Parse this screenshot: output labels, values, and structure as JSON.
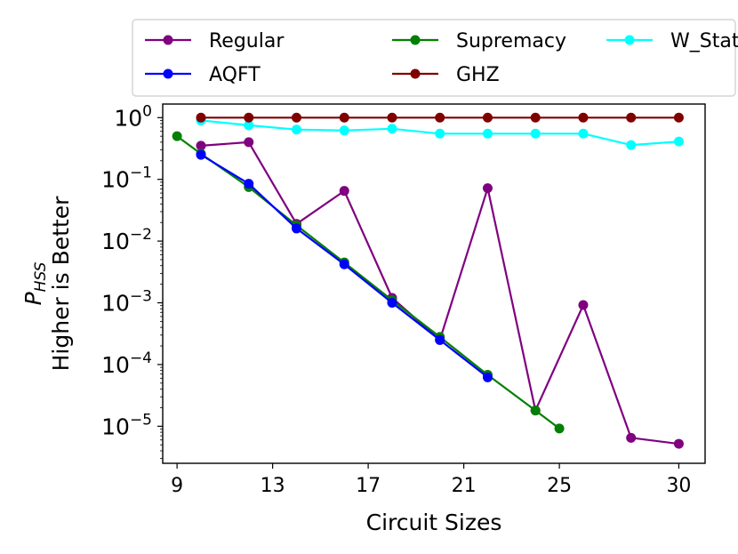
{
  "chart_data": {
    "type": "line",
    "title": "",
    "xlabel": "Circuit Sizes",
    "ylabel_line1": "P",
    "ylabel_sub": "HSS",
    "ylabel_line2": "Higher is Better",
    "yscale": "log",
    "xlim": [
      8.4,
      31.1
    ],
    "ylim_exponent": [
      -5.6,
      0.22
    ],
    "x_ticks": [
      9,
      13,
      17,
      21,
      25,
      30
    ],
    "x_tick_labels": [
      "9",
      "13",
      "17",
      "21",
      "25",
      "30"
    ],
    "y_tick_exponents": [
      0,
      -1,
      -2,
      -3,
      -4,
      -5
    ],
    "y_tick_base": "10",
    "y_tick_exp_labels": [
      "0",
      "−1",
      "−2",
      "−3",
      "−4",
      "−5"
    ],
    "legend_position": "top",
    "series": [
      {
        "name": "Regular",
        "color": "#800080",
        "x": [
          10,
          12,
          14,
          16,
          18,
          20,
          22,
          24,
          26,
          28,
          30
        ],
        "values": [
          0.35,
          0.4,
          0.019,
          0.065,
          0.0012,
          0.00025,
          0.072,
          1.8e-05,
          0.00092,
          6.5e-06,
          5.2e-06
        ]
      },
      {
        "name": "Supremacy",
        "color": "#008000",
        "x": [
          9,
          10,
          12,
          14,
          16,
          18,
          20,
          22,
          24,
          25
        ],
        "values": [
          0.5,
          0.26,
          0.075,
          0.018,
          0.0045,
          0.0011,
          0.00028,
          6.8e-05,
          1.8e-05,
          9.2e-06
        ]
      },
      {
        "name": "W_State",
        "color": "#00ffff",
        "x": [
          10,
          12,
          14,
          16,
          18,
          20,
          22,
          24,
          26,
          28,
          30
        ],
        "values": [
          0.9,
          0.75,
          0.64,
          0.62,
          0.66,
          0.55,
          0.55,
          0.55,
          0.55,
          0.36,
          0.41
        ]
      },
      {
        "name": "AQFT",
        "color": "#0000ff",
        "x": [
          10,
          12,
          14,
          16,
          18,
          20,
          22
        ],
        "values": [
          0.25,
          0.085,
          0.016,
          0.0042,
          0.001,
          0.00025,
          6.2e-05
        ]
      },
      {
        "name": "GHZ",
        "color": "#800000",
        "x": [
          10,
          12,
          14,
          16,
          18,
          20,
          22,
          24,
          26,
          28,
          30
        ],
        "values": [
          1.0,
          1.0,
          1.0,
          1.0,
          1.0,
          1.0,
          1.0,
          1.0,
          1.0,
          1.0,
          1.0
        ]
      }
    ]
  }
}
